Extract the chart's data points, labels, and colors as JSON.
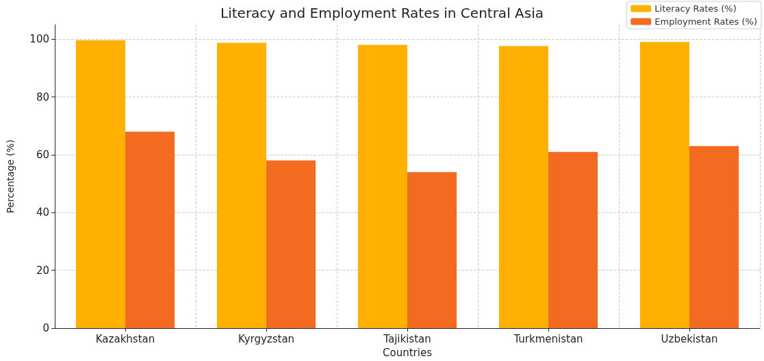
{
  "chart_data": {
    "type": "bar",
    "title": "Literacy and Employment Rates in Central Asia",
    "xlabel": "Countries",
    "ylabel": "Percentage (%)",
    "categories": [
      "Kazakhstan",
      "Kyrgyzstan",
      "Tajikistan",
      "Turkmenistan",
      "Uzbekistan"
    ],
    "series": [
      {
        "name": "Literacy Rates (%)",
        "color": "#ffb000",
        "values": [
          99.6,
          98.7,
          98,
          97.6,
          99
        ]
      },
      {
        "name": "Employment Rates (%)",
        "color": "#f26b21",
        "values": [
          68,
          58,
          54,
          61,
          63
        ]
      }
    ],
    "ylim": [
      0,
      105
    ],
    "yticks": [
      0,
      20,
      40,
      60,
      80,
      100
    ],
    "grid": true,
    "legend": "top right"
  }
}
